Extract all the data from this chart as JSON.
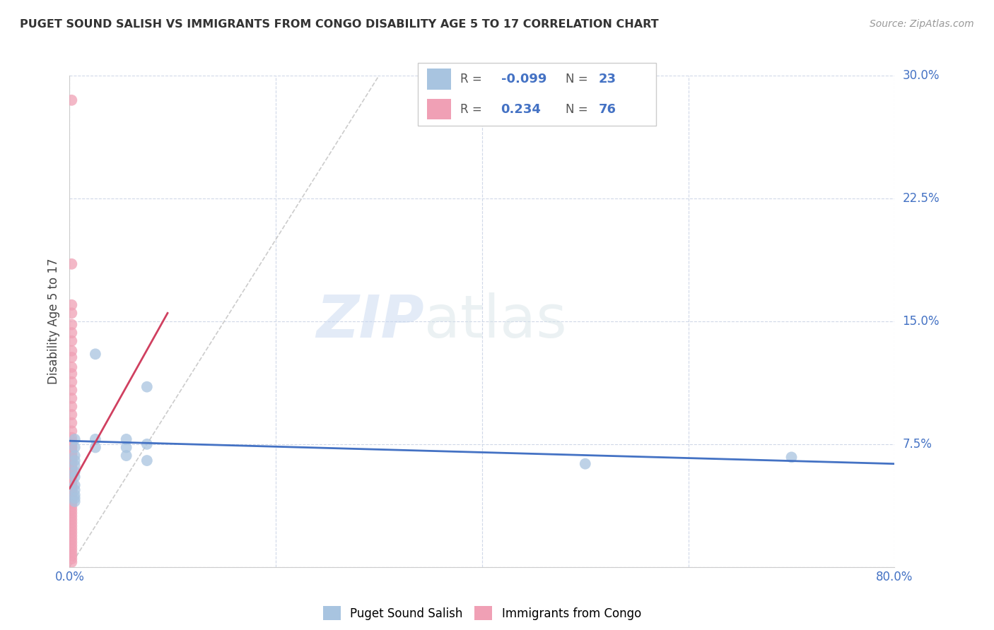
{
  "title": "PUGET SOUND SALISH VS IMMIGRANTS FROM CONGO DISABILITY AGE 5 TO 17 CORRELATION CHART",
  "source": "Source: ZipAtlas.com",
  "xlabel_blue": "Puget Sound Salish",
  "xlabel_pink": "Immigrants from Congo",
  "ylabel": "Disability Age 5 to 17",
  "xlim": [
    0.0,
    0.8
  ],
  "ylim": [
    0.0,
    0.3
  ],
  "xticks": [
    0.0,
    0.8
  ],
  "yticks": [
    0.0,
    0.075,
    0.15,
    0.225,
    0.3
  ],
  "ytick_labels": [
    "",
    "7.5%",
    "15.0%",
    "22.5%",
    "30.0%"
  ],
  "xtick_labels": [
    "0.0%",
    "80.0%"
  ],
  "blue_R": -0.099,
  "blue_N": 23,
  "pink_R": 0.234,
  "pink_N": 76,
  "blue_color": "#a8c4e0",
  "pink_color": "#f0a0b5",
  "blue_line_color": "#4472c4",
  "pink_line_color": "#d04060",
  "grid_color": "#d0d8e8",
  "blue_scatter_x": [
    0.005,
    0.005,
    0.005,
    0.005,
    0.005,
    0.005,
    0.025,
    0.025,
    0.025,
    0.055,
    0.055,
    0.055,
    0.075,
    0.075,
    0.075,
    0.5,
    0.7,
    0.005,
    0.005,
    0.005,
    0.005,
    0.005,
    0.005
  ],
  "blue_scatter_y": [
    0.078,
    0.073,
    0.068,
    0.065,
    0.062,
    0.058,
    0.13,
    0.078,
    0.073,
    0.078,
    0.073,
    0.068,
    0.11,
    0.075,
    0.065,
    0.063,
    0.067,
    0.055,
    0.05,
    0.047,
    0.044,
    0.042,
    0.04
  ],
  "pink_scatter_x": [
    0.002,
    0.002,
    0.002,
    0.002,
    0.002,
    0.002,
    0.002,
    0.002,
    0.002,
    0.002,
    0.002,
    0.002,
    0.002,
    0.002,
    0.002,
    0.002,
    0.002,
    0.002,
    0.002,
    0.002,
    0.002,
    0.002,
    0.002,
    0.002,
    0.002,
    0.002,
    0.002,
    0.002,
    0.002,
    0.002,
    0.002,
    0.002,
    0.002,
    0.002,
    0.002,
    0.002,
    0.002,
    0.002,
    0.002,
    0.002,
    0.002,
    0.002,
    0.002,
    0.002,
    0.002,
    0.002,
    0.002,
    0.002,
    0.002,
    0.002,
    0.002,
    0.002,
    0.002,
    0.002,
    0.002,
    0.002,
    0.002,
    0.002,
    0.002,
    0.002,
    0.002,
    0.002,
    0.002,
    0.002,
    0.002,
    0.002,
    0.002,
    0.002,
    0.002,
    0.002,
    0.002,
    0.002,
    0.002,
    0.002,
    0.002,
    0.002
  ],
  "pink_scatter_y": [
    0.285,
    0.185,
    0.16,
    0.155,
    0.148,
    0.143,
    0.138,
    0.132,
    0.128,
    0.122,
    0.118,
    0.113,
    0.108,
    0.103,
    0.098,
    0.093,
    0.088,
    0.083,
    0.079,
    0.077,
    0.075,
    0.073,
    0.071,
    0.069,
    0.067,
    0.065,
    0.063,
    0.061,
    0.059,
    0.057,
    0.055,
    0.053,
    0.051,
    0.049,
    0.047,
    0.045,
    0.043,
    0.041,
    0.039,
    0.037,
    0.035,
    0.033,
    0.031,
    0.029,
    0.027,
    0.025,
    0.023,
    0.021,
    0.019,
    0.017,
    0.015,
    0.013,
    0.011,
    0.009,
    0.007,
    0.005,
    0.003,
    0.075,
    0.073,
    0.071,
    0.069,
    0.067,
    0.065,
    0.063,
    0.061,
    0.059,
    0.057,
    0.055,
    0.053,
    0.051,
    0.049,
    0.047,
    0.045,
    0.043,
    0.041,
    0.039
  ]
}
